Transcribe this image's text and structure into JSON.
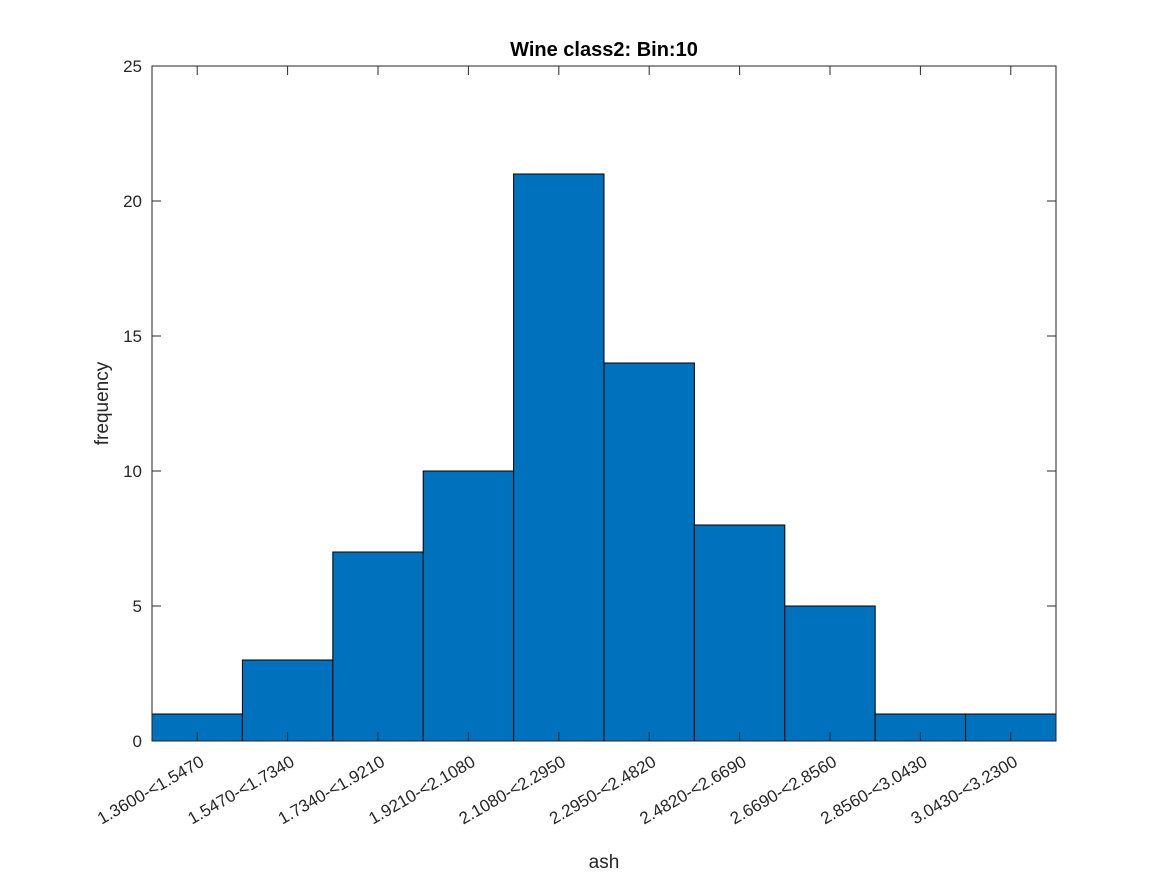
{
  "chart_data": {
    "type": "bar",
    "title": "Wine class2: Bin:10",
    "xlabel": "ash",
    "ylabel": "frequency",
    "categories": [
      "1.3600-<1.5470",
      "1.5470-<1.7340",
      "1.7340-<1.9210",
      "1.9210-<2.1080",
      "2.1080-<2.2950",
      "2.2950-<2.4820",
      "2.4820-<2.6690",
      "2.6690-<2.8560",
      "2.8560-<3.0430",
      "3.0430-<3.2300"
    ],
    "values": [
      1,
      3,
      7,
      10,
      21,
      14,
      8,
      5,
      1,
      1
    ],
    "ylim": [
      0,
      25
    ],
    "yticks": [
      0,
      5,
      10,
      15,
      20,
      25
    ],
    "grid": false,
    "legend": "none",
    "colors": {
      "bar_fill": "#0072BD",
      "bar_edge": "#000000",
      "axis": "#262626"
    }
  }
}
